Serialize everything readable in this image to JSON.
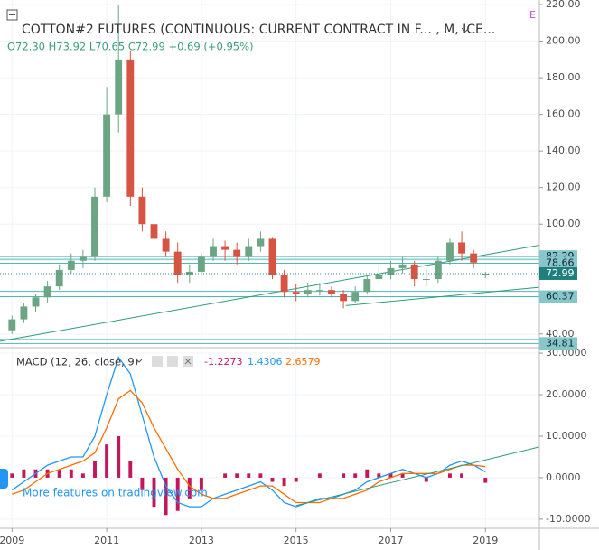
{
  "chart_data": {
    "type": "candlestick",
    "title": "COTTON#2 FUTURES (CONTINUOUS: CURRENT CONTRACT IN F... , M, ICE...",
    "ohlc_text": "O72.30 H73.92 L70.65 C72.99 +0.69 (+0.95%)",
    "flag": "E",
    "watermark": "More features on tradingview.com",
    "x": [
      2009,
      2009.25,
      2009.5,
      2009.75,
      2010,
      2010.25,
      2010.5,
      2010.75,
      2011,
      2011.25,
      2011.5,
      2011.75,
      2012,
      2012.25,
      2012.5,
      2012.75,
      2013,
      2013.25,
      2013.5,
      2013.75,
      2014,
      2014.25,
      2014.5,
      2014.75,
      2015,
      2015.25,
      2015.5,
      2015.75,
      2016,
      2016.25,
      2016.5,
      2016.75,
      2017,
      2017.25,
      2017.5,
      2017.75,
      2018,
      2018.25,
      2018.5,
      2018.75,
      2019
    ],
    "open": [
      42,
      48,
      55,
      60,
      66,
      75,
      80,
      82,
      115,
      160,
      190,
      115,
      100,
      92,
      85,
      72,
      74,
      82,
      88,
      86,
      82,
      88,
      92,
      72,
      63,
      62,
      64,
      64,
      62,
      58,
      63,
      70,
      72,
      76,
      78,
      70,
      70,
      80,
      90,
      84,
      72.3
    ],
    "high": [
      50,
      57,
      62,
      69,
      78,
      84,
      86,
      120,
      175,
      220,
      195,
      120,
      104,
      96,
      90,
      78,
      84,
      92,
      91,
      90,
      92,
      96,
      93,
      75,
      67,
      68,
      68,
      66,
      64,
      66,
      72,
      77,
      80,
      82,
      80,
      75,
      82,
      92,
      96,
      86,
      73.92
    ],
    "low": [
      40,
      46,
      52,
      57,
      64,
      73,
      76,
      80,
      112,
      150,
      110,
      96,
      88,
      82,
      68,
      68,
      72,
      80,
      80,
      78,
      80,
      85,
      70,
      60,
      58,
      60,
      61,
      60,
      54,
      57,
      62,
      68,
      70,
      73,
      66,
      66,
      68,
      78,
      80,
      76,
      70.65
    ],
    "close": [
      48,
      55,
      60,
      66,
      75,
      80,
      82,
      115,
      160,
      190,
      115,
      100,
      92,
      85,
      72,
      74,
      82,
      88,
      86,
      82,
      88,
      92,
      72,
      63,
      62,
      64,
      64,
      62,
      58,
      63,
      70,
      72,
      76,
      78,
      70,
      70,
      80,
      90,
      84,
      79,
      72.99
    ],
    "up_color": "#6ba583",
    "down_color": "#d75442",
    "xlim": [
      2008.746,
      2020.14
    ],
    "xticks": [
      2009,
      2011,
      2013,
      2015,
      2017,
      2019
    ],
    "ylim": [
      33,
      222.5
    ],
    "yticks": [
      {
        "value": 40,
        "label": "40.00"
      },
      {
        "value": 60,
        "label": "60.00"
      },
      {
        "value": 80,
        "label": "80.00"
      },
      {
        "value": 100,
        "label": "100.00"
      },
      {
        "value": 120,
        "label": "120.00"
      },
      {
        "value": 140,
        "label": "140.00"
      },
      {
        "value": 160,
        "label": "160.00"
      },
      {
        "value": 180,
        "label": "180.00"
      },
      {
        "value": 200,
        "label": "200.00"
      },
      {
        "value": 220,
        "label": "220.00"
      }
    ],
    "price_lines": [
      82.29,
      78.66,
      60.37,
      34.81
    ],
    "extra_lines": [
      80.8,
      63.3,
      37
    ],
    "line_color": "#53b7b7",
    "trendlines": [
      {
        "x": [
          2008.746,
          2020.14
        ],
        "y": [
          36,
          88.5
        ]
      },
      {
        "x": [
          2016.05,
          2020.14
        ],
        "y": [
          55.5,
          65.5
        ]
      }
    ],
    "macd": {
      "label": "MACD (12, 26, close, 9)",
      "ylim": [
        -12.2,
        31.1
      ],
      "yticks": [
        {
          "value": -10,
          "label": "-10.0000"
        },
        {
          "value": 0,
          "label": "0.0000"
        },
        {
          "value": 10,
          "label": "10.0000"
        },
        {
          "value": 20,
          "label": "20.0000"
        },
        {
          "value": 30,
          "label": "30.0000"
        }
      ],
      "histogram": {
        "name": "-1.2273",
        "color": "#c2185b",
        "values": [
          1,
          2,
          2,
          2,
          2,
          2,
          1,
          4,
          8,
          10,
          4,
          -3,
          -7,
          -9,
          -8,
          -5,
          -3,
          0,
          1,
          1,
          1,
          1,
          -1,
          -2,
          -1,
          0,
          1,
          0,
          1,
          1,
          2,
          1,
          1,
          1,
          0,
          -1,
          0,
          1,
          1,
          0,
          -1.2273
        ]
      },
      "series": [
        {
          "name": "1.4306",
          "color": "#2196f3",
          "values": [
            -3,
            -1,
            1,
            3,
            4,
            5,
            5,
            10,
            20,
            29,
            25,
            15,
            5,
            -2,
            -6,
            -7,
            -7,
            -5,
            -4,
            -3,
            -2,
            -1,
            -3,
            -6,
            -7,
            -6,
            -5,
            -5,
            -4,
            -3,
            -1,
            0,
            1,
            2,
            1,
            0,
            1,
            3,
            4,
            3,
            1.4306
          ]
        },
        {
          "name": "2.6579",
          "color": "#ff6d00",
          "values": [
            -4,
            -3,
            -1,
            1,
            2,
            3,
            4,
            6,
            12,
            19,
            21,
            18,
            12,
            7,
            2,
            -2,
            -4,
            -5,
            -5,
            -4,
            -3,
            -2,
            -2,
            -4,
            -6,
            -6,
            -6,
            -5,
            -5,
            -4,
            -3,
            -1,
            0,
            1,
            1,
            1,
            1,
            2,
            3,
            3,
            2.6579
          ]
        }
      ],
      "trendline": {
        "x": [
          2015.0,
          2020.14
        ],
        "y": [
          -6.7,
          7.4
        ]
      }
    }
  }
}
